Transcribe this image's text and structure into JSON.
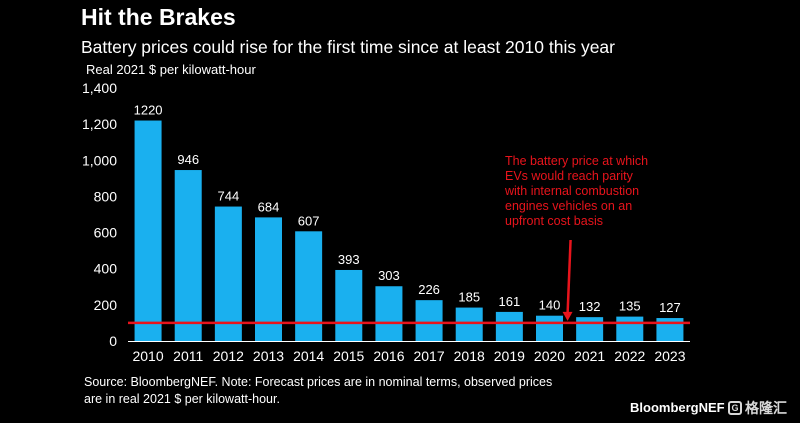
{
  "title": "Hit the Brakes",
  "subtitle": "Battery prices could rise for the first time since at least 2010 this year",
  "footnote": "Source: BloombergNEF. Note: Forecast prices are in nominal terms, observed prices are in real 2021 $ per kilowatt-hour.",
  "brand": "BloombergNEF",
  "watermark": "格隆汇",
  "colors": {
    "background": "#000000",
    "bar": "#1ab0ef",
    "annotation": "#e8141c",
    "text": "#ffffff"
  },
  "chart_data": {
    "type": "bar",
    "title": "Hit the Brakes",
    "subtitle": "Battery prices could rise for the first time since at least 2010 this year",
    "ylabel": "Real 2021 $ per kilowatt-hour",
    "xlabel": "",
    "categories": [
      "2010",
      "2011",
      "2012",
      "2013",
      "2014",
      "2015",
      "2016",
      "2017",
      "2018",
      "2019",
      "2020",
      "2021",
      "2022",
      "2023"
    ],
    "values": [
      1220,
      946,
      744,
      684,
      607,
      393,
      303,
      226,
      185,
      161,
      140,
      132,
      135,
      127
    ],
    "data_labels": [
      "1220",
      "946",
      "744",
      "684",
      "607",
      "393",
      "303",
      "226",
      "185",
      "161",
      "140",
      "132",
      "135",
      "127"
    ],
    "ylim": [
      0,
      1400
    ],
    "yticks": [
      0,
      200,
      400,
      600,
      800,
      1000,
      1200,
      1400
    ],
    "ytick_labels": [
      "0",
      "200",
      "400",
      "600",
      "800",
      "1,000",
      "1,200",
      "1,400"
    ],
    "grid": false,
    "reference_line": {
      "value": 100,
      "label": "The battery price at which EVs would reach parity with internal combustion engines vehicles on an upfront cost basis",
      "label_lines": [
        "The battery price at which",
        "EVs would reach parity",
        "with internal combustion",
        "engines vehicles on an",
        "upfront cost basis"
      ],
      "arrow_target_category": "2020"
    }
  }
}
